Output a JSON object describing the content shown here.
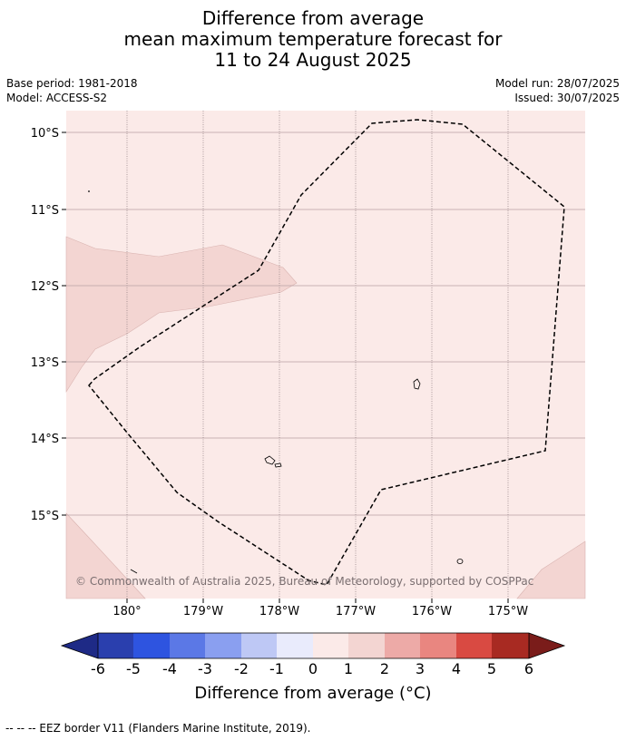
{
  "header": {
    "title_line1": "Difference from average",
    "title_line2": "mean maximum temperature forecast for",
    "title_line3": "11 to 24 August 2025"
  },
  "meta": {
    "base_period": "Base period: 1981-2018",
    "model": "Model: ACCESS-S2",
    "model_run": "Model run: 28/07/2025",
    "issued": "Issued: 30/07/2025"
  },
  "map": {
    "lat_labels": [
      "10°S",
      "11°S",
      "12°S",
      "13°S",
      "14°S",
      "15°S"
    ],
    "lon_labels": [
      "180°",
      "179°W",
      "178°W",
      "177°W",
      "176°W",
      "175°W"
    ],
    "copyright": "© Commonwealth of Australia 2025, Bureau of Meteorology, supported by COSPPac",
    "colors": {
      "background_anomaly_0_1": "#fbeae8",
      "anomaly_1_2": "#f3d5d2",
      "gridline": "#b8a0a4"
    }
  },
  "colorbar": {
    "ticks": [
      "-6",
      "-5",
      "-4",
      "-3",
      "-2",
      "-1",
      "0",
      "1",
      "2",
      "3",
      "4",
      "5",
      "6"
    ],
    "colors": [
      "#1e2a86",
      "#2a3fae",
      "#2e54e0",
      "#5b78e6",
      "#8a9ff0",
      "#bec8f5",
      "#e9ebfc",
      "#fbeae8",
      "#f3d5d2",
      "#edaaa7",
      "#e98680",
      "#d94a42",
      "#a82a22",
      "#7a1c1a"
    ],
    "label": "Difference from average ($^\\circ$C)",
    "label_display": "Difference from average (°C)"
  },
  "footnote": "--  --  -- EEZ border V11 (Flanders Marine Institute, 2019)."
}
